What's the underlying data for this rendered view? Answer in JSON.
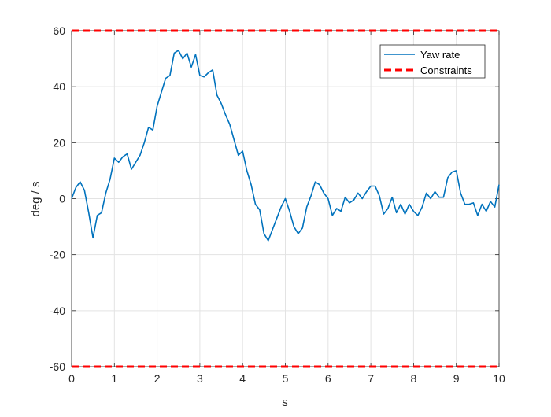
{
  "chart_data": {
    "type": "line",
    "xlabel": "s",
    "ylabel": "deg / s",
    "xlim": [
      0,
      10
    ],
    "ylim": [
      -60,
      60
    ],
    "x_ticks": [
      0,
      1,
      2,
      3,
      4,
      5,
      6,
      7,
      8,
      9,
      10
    ],
    "y_ticks": [
      -60,
      -40,
      -20,
      0,
      20,
      40,
      60
    ],
    "grid": true,
    "legend_position": "top-right",
    "series": [
      {
        "name": "Yaw rate",
        "color": "#0072BD",
        "style": "solid",
        "x": [
          0,
          0.1,
          0.2,
          0.3,
          0.4,
          0.5,
          0.6,
          0.7,
          0.8,
          0.9,
          1.0,
          1.1,
          1.2,
          1.3,
          1.4,
          1.5,
          1.6,
          1.7,
          1.8,
          1.9,
          2.0,
          2.1,
          2.2,
          2.3,
          2.4,
          2.5,
          2.6,
          2.7,
          2.8,
          2.9,
          3.0,
          3.1,
          3.2,
          3.3,
          3.4,
          3.5,
          3.6,
          3.7,
          3.8,
          3.9,
          4.0,
          4.1,
          4.2,
          4.3,
          4.4,
          4.5,
          4.6,
          4.7,
          4.8,
          4.9,
          5.0,
          5.1,
          5.2,
          5.3,
          5.4,
          5.5,
          5.6,
          5.7,
          5.8,
          5.9,
          6.0,
          6.1,
          6.2,
          6.3,
          6.4,
          6.5,
          6.6,
          6.7,
          6.8,
          6.9,
          7.0,
          7.1,
          7.2,
          7.3,
          7.4,
          7.5,
          7.6,
          7.7,
          7.8,
          7.9,
          8.0,
          8.1,
          8.2,
          8.3,
          8.4,
          8.5,
          8.6,
          8.7,
          8.8,
          8.9,
          9.0,
          9.1,
          9.2,
          9.3,
          9.4,
          9.5,
          9.6,
          9.7,
          9.8,
          9.9,
          10.0
        ],
        "y": [
          0,
          4,
          6,
          3,
          -5,
          -14,
          -6,
          -5,
          2,
          7,
          14.5,
          13,
          15,
          16,
          10.5,
          13,
          15.5,
          20,
          25.5,
          24.5,
          33,
          38,
          43,
          44,
          52,
          53,
          50,
          52,
          47,
          51.5,
          44,
          43.5,
          45,
          46,
          37,
          34,
          30,
          26.5,
          21,
          15.5,
          17,
          10,
          5,
          -2,
          -4,
          -12.5,
          -15,
          -11,
          -7,
          -3,
          0,
          -4.5,
          -10,
          -12.5,
          -10.5,
          -3,
          1,
          6,
          5,
          2,
          0,
          -6,
          -3.5,
          -4.5,
          0.5,
          -1.5,
          -0.5,
          2,
          0,
          2.5,
          4.5,
          4.5,
          1,
          -5.5,
          -3.5,
          0.5,
          -5,
          -2,
          -5.5,
          -2,
          -4.5,
          -6,
          -3,
          2,
          0,
          2.5,
          0.5,
          0.5,
          7.5,
          9.5,
          10,
          2,
          -2,
          -2,
          -1.5,
          -6,
          -2,
          -4.5,
          -1,
          -3,
          5
        ]
      },
      {
        "name": "Constraints",
        "color": "#FF0000",
        "style": "dashed",
        "segments": [
          {
            "x": [
              0,
              10
            ],
            "y": [
              60,
              60
            ]
          },
          {
            "x": [
              0,
              10
            ],
            "y": [
              -60,
              -60
            ]
          }
        ]
      }
    ]
  }
}
